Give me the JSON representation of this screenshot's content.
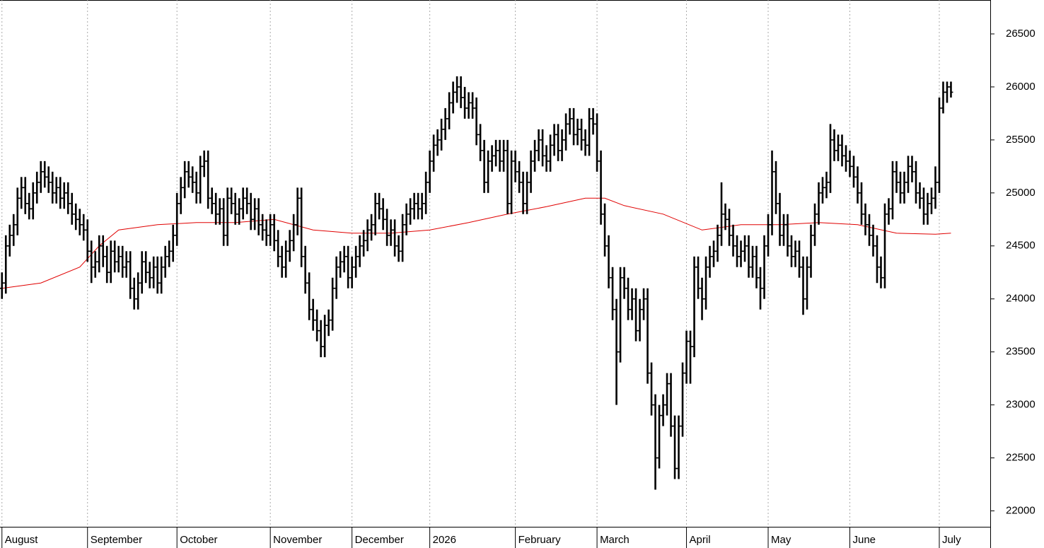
{
  "chart_data": {
    "type": "ohlc",
    "color": "#000000",
    "open": [
      24100,
      24150,
      24500,
      24600,
      24700,
      24950,
      25050,
      24900,
      24850,
      25000,
      25100,
      25200,
      25150,
      25100,
      25000,
      25050,
      24950,
      25000,
      24900,
      24800,
      24750,
      24700,
      24650,
      24450,
      24300,
      24350,
      24500,
      24400,
      24250,
      24450,
      24350,
      24400,
      24300,
      24350,
      24100,
      24000,
      24150,
      24350,
      24250,
      24200,
      24300,
      24150,
      24300,
      24400,
      24450,
      24600,
      24900,
      25050,
      25200,
      25150,
      25100,
      25000,
      25250,
      25300,
      24950,
      24900,
      24800,
      24850,
      24600,
      24950,
      24900,
      24800,
      24850,
      24950,
      24900,
      24750,
      24850,
      24700,
      24650,
      24600,
      24700,
      24550,
      24400,
      24300,
      24450,
      24550,
      24700,
      24950,
      24400,
      24150,
      23900,
      23800,
      23700,
      23550,
      23750,
      23800,
      24100,
      24300,
      24350,
      24400,
      24200,
      24300,
      24400,
      24500,
      24550,
      24650,
      24700,
      24900,
      24850,
      24750,
      24600,
      24650,
      24500,
      24450,
      24700,
      24800,
      24850,
      24900,
      24850,
      24900,
      25100,
      25300,
      25450,
      25500,
      25600,
      25700,
      25850,
      25950,
      26000,
      25900,
      25800,
      25850,
      25800,
      25550,
      25400,
      25100,
      25300,
      25350,
      25400,
      25300,
      25400,
      24900,
      25300,
      25200,
      25100,
      24900,
      25100,
      25300,
      25400,
      25500,
      25350,
      25300,
      25450,
      25550,
      25400,
      25500,
      25650,
      25700,
      25550,
      25600,
      25500,
      25450,
      25700,
      25650,
      25300,
      24800,
      24500,
      24200,
      23900,
      23500,
      24200,
      24100,
      23900,
      24000,
      23700,
      23900,
      24000,
      23300,
      23000,
      22500,
      22900,
      23000,
      23200,
      22800,
      22400,
      22800,
      23300,
      23600,
      23550,
      24300,
      24100,
      24000,
      24300,
      24400,
      24450,
      24600,
      24800,
      24750,
      24600,
      24500,
      24400,
      24450,
      24500,
      24300,
      24400,
      24200,
      24100,
      24500,
      24700,
      25200,
      24900,
      24600,
      24700,
      24500,
      24400,
      24450,
      24300,
      24000,
      24300,
      24600,
      24800,
      25000,
      25050,
      25100,
      25500,
      25400,
      25450,
      25350,
      25300,
      25250,
      25150,
      25000,
      24800,
      24700,
      24600,
      24500,
      24300,
      24200,
      24800,
      24850,
      25200,
      25100,
      25000,
      25100,
      25250,
      25200,
      25000,
      24950,
      24800,
      24900,
      24950,
      25100,
      25800,
      25950,
      26000
    ],
    "high": [
      24250,
      24600,
      24700,
      24800,
      25050,
      25150,
      25150,
      25000,
      25100,
      25200,
      25300,
      25300,
      25250,
      25200,
      25150,
      25150,
      25100,
      25100,
      25000,
      24900,
      24850,
      24800,
      24750,
      24550,
      24450,
      24600,
      24600,
      24500,
      24550,
      24550,
      24500,
      24500,
      24450,
      24450,
      24200,
      24250,
      24450,
      24450,
      24350,
      24400,
      24400,
      24400,
      24500,
      24550,
      24700,
      25000,
      25150,
      25300,
      25300,
      25250,
      25200,
      25350,
      25400,
      25400,
      25050,
      25000,
      24950,
      24950,
      25050,
      25050,
      25000,
      24950,
      25050,
      25050,
      25000,
      24950,
      24950,
      24800,
      24750,
      24800,
      24800,
      24650,
      24500,
      24550,
      24650,
      24800,
      25050,
      25050,
      24500,
      24250,
      24000,
      23900,
      23800,
      23850,
      23900,
      24200,
      24400,
      24450,
      24500,
      24500,
      24400,
      24500,
      24600,
      24650,
      24750,
      24800,
      25000,
      25000,
      24950,
      24850,
      24750,
      24750,
      24600,
      24800,
      24900,
      24950,
      25000,
      25000,
      25000,
      25200,
      25400,
      25550,
      25600,
      25700,
      25800,
      25950,
      26050,
      26100,
      26100,
      26000,
      25950,
      25950,
      25900,
      25650,
      25500,
      25400,
      25450,
      25500,
      25500,
      25500,
      25500,
      25400,
      25400,
      25300,
      25200,
      25200,
      25400,
      25500,
      25600,
      25600,
      25450,
      25550,
      25650,
      25650,
      25600,
      25750,
      25800,
      25800,
      25700,
      25700,
      25600,
      25800,
      25800,
      25750,
      25400,
      24900,
      24600,
      24300,
      24000,
      24300,
      24300,
      24200,
      24100,
      24100,
      24000,
      24100,
      24100,
      23400,
      23100,
      23000,
      23100,
      23300,
      23300,
      22900,
      22900,
      23400,
      23700,
      23700,
      24400,
      24400,
      24200,
      24400,
      24500,
      24550,
      24700,
      25100,
      24900,
      24850,
      24700,
      24600,
      24550,
      24600,
      24600,
      24500,
      24500,
      24300,
      24600,
      24800,
      25400,
      25300,
      25000,
      24800,
      24800,
      24600,
      24550,
      24550,
      24400,
      24400,
      24700,
      24900,
      25100,
      25150,
      25200,
      25650,
      25600,
      25550,
      25550,
      25450,
      25400,
      25350,
      25250,
      25100,
      24900,
      24800,
      24700,
      24600,
      24400,
      24900,
      24950,
      25300,
      25300,
      25200,
      25200,
      25350,
      25350,
      25300,
      25100,
      25050,
      25000,
      25050,
      25250,
      25900,
      26050,
      26050,
      26050
    ],
    "low": [
      24000,
      24050,
      24400,
      24500,
      24600,
      24850,
      24800,
      24750,
      24750,
      24900,
      25000,
      25050,
      25000,
      24900,
      24900,
      24850,
      24850,
      24800,
      24700,
      24650,
      24600,
      24550,
      24350,
      24150,
      24200,
      24250,
      24300,
      24150,
      24150,
      24250,
      24250,
      24200,
      24200,
      24000,
      23900,
      23900,
      24050,
      24150,
      24100,
      24100,
      24050,
      24050,
      24200,
      24300,
      24350,
      24500,
      24800,
      24950,
      25050,
      25000,
      24900,
      24900,
      25150,
      24850,
      24800,
      24700,
      24700,
      24500,
      24500,
      24800,
      24700,
      24700,
      24750,
      24800,
      24650,
      24650,
      24600,
      24550,
      24500,
      24500,
      24450,
      24300,
      24200,
      24200,
      24350,
      24450,
      24600,
      24300,
      24050,
      23800,
      23700,
      23600,
      23450,
      23450,
      23650,
      23700,
      24000,
      24200,
      24250,
      24100,
      24100,
      24200,
      24300,
      24400,
      24450,
      24550,
      24600,
      24750,
      24650,
      24500,
      24500,
      24400,
      24350,
      24350,
      24600,
      24700,
      24750,
      24750,
      24750,
      24800,
      25000,
      25200,
      25350,
      25400,
      25500,
      25600,
      25750,
      25850,
      25800,
      25700,
      25700,
      25700,
      25450,
      25300,
      25000,
      25000,
      25200,
      25250,
      25200,
      25200,
      24800,
      24800,
      25100,
      25000,
      24800,
      24800,
      25000,
      25200,
      25300,
      25250,
      25200,
      25200,
      25350,
      25300,
      25300,
      25400,
      25550,
      25450,
      25450,
      25400,
      25350,
      25350,
      25550,
      25200,
      24700,
      24400,
      24100,
      23800,
      23000,
      23400,
      24000,
      23800,
      23800,
      23600,
      23600,
      23800,
      23200,
      22900,
      22200,
      22400,
      22800,
      22900,
      22700,
      22300,
      22300,
      22700,
      23200,
      23200,
      23450,
      24000,
      23800,
      23900,
      24200,
      24300,
      24350,
      24500,
      24650,
      24500,
      24400,
      24300,
      24300,
      24350,
      24200,
      24200,
      24100,
      23900,
      24000,
      24400,
      24600,
      24800,
      24500,
      24500,
      24400,
      24300,
      24300,
      24200,
      23850,
      23900,
      24200,
      24500,
      24700,
      24900,
      24950,
      25000,
      25300,
      25300,
      25250,
      25200,
      25150,
      25050,
      24900,
      24700,
      24600,
      24500,
      24400,
      24150,
      24100,
      24100,
      24700,
      24750,
      25000,
      24900,
      24900,
      25000,
      25100,
      24900,
      24850,
      24700,
      24700,
      24800,
      24850,
      25000,
      25750,
      25850,
      25900
    ],
    "close": [
      24150,
      24500,
      24600,
      24700,
      24950,
      25050,
      24900,
      24850,
      25000,
      25100,
      25200,
      25150,
      25100,
      25000,
      25050,
      24950,
      25000,
      24900,
      24800,
      24750,
      24700,
      24650,
      24450,
      24300,
      24350,
      24500,
      24400,
      24250,
      24450,
      24350,
      24400,
      24300,
      24350,
      24100,
      24000,
      24150,
      24350,
      24250,
      24200,
      24300,
      24150,
      24300,
      24400,
      24450,
      24600,
      24900,
      25050,
      25200,
      25150,
      25100,
      25000,
      25250,
      25300,
      24950,
      24900,
      24800,
      24850,
      24600,
      24950,
      24900,
      24800,
      24850,
      24950,
      24900,
      24750,
      24850,
      24700,
      24650,
      24600,
      24700,
      24550,
      24400,
      24300,
      24450,
      24550,
      24700,
      24950,
      24400,
      24150,
      23900,
      23800,
      23700,
      23550,
      23750,
      23800,
      24100,
      24300,
      24350,
      24400,
      24200,
      24300,
      24400,
      24500,
      24550,
      24650,
      24700,
      24900,
      24850,
      24750,
      24600,
      24650,
      24500,
      24450,
      24700,
      24800,
      24850,
      24900,
      24850,
      24900,
      25100,
      25300,
      25450,
      25500,
      25600,
      25700,
      25850,
      25950,
      26000,
      25900,
      25800,
      25850,
      25800,
      25550,
      25400,
      25100,
      25300,
      25350,
      25400,
      25300,
      25400,
      24900,
      25300,
      25200,
      25100,
      24900,
      25100,
      25300,
      25400,
      25500,
      25350,
      25300,
      25450,
      25550,
      25400,
      25500,
      25650,
      25700,
      25550,
      25600,
      25500,
      25450,
      25700,
      25650,
      25300,
      24800,
      24500,
      24200,
      23900,
      23500,
      24200,
      24100,
      23900,
      24000,
      23700,
      23900,
      24000,
      23300,
      23000,
      22500,
      22900,
      23000,
      23200,
      22800,
      22400,
      22800,
      23300,
      23600,
      23550,
      24300,
      24100,
      24000,
      24300,
      24400,
      24450,
      24600,
      24800,
      24750,
      24600,
      24500,
      24400,
      24450,
      24500,
      24300,
      24400,
      24200,
      24100,
      24500,
      24700,
      25200,
      24900,
      24600,
      24700,
      24500,
      24400,
      24450,
      24300,
      24000,
      24300,
      24600,
      24800,
      25000,
      25050,
      25100,
      25500,
      25400,
      25450,
      25350,
      25300,
      25250,
      25150,
      25000,
      24800,
      24700,
      24600,
      24500,
      24300,
      24200,
      24800,
      24850,
      25200,
      25100,
      25000,
      25100,
      25250,
      25200,
      25000,
      24950,
      24800,
      24900,
      24950,
      25100,
      25800,
      25950,
      26000,
      25950
    ],
    "ma": {
      "color": "#e00000",
      "x": [
        0,
        10,
        20,
        25,
        30,
        40,
        50,
        60,
        70,
        80,
        90,
        100,
        110,
        120,
        130,
        140,
        150,
        155,
        160,
        170,
        180,
        190,
        200,
        210,
        220,
        230,
        240,
        244
      ],
      "values": [
        24100,
        24150,
        24300,
        24500,
        24650,
        24700,
        24720,
        24720,
        24750,
        24650,
        24620,
        24620,
        24650,
        24720,
        24800,
        24870,
        24950,
        24950,
        24880,
        24800,
        24650,
        24700,
        24700,
        24720,
        24700,
        24620,
        24610,
        24620
      ]
    },
    "xlim": [
      -0.5,
      254.1
    ],
    "xticks": [
      {
        "value": 0,
        "label": "August"
      },
      {
        "value": 22,
        "label": "September"
      },
      {
        "value": 45,
        "label": "October"
      },
      {
        "value": 69,
        "label": "November"
      },
      {
        "value": 90,
        "label": "December"
      },
      {
        "value": 110,
        "label": "2026"
      },
      {
        "value": 132,
        "label": "February"
      },
      {
        "value": 153,
        "label": "March"
      },
      {
        "value": 176,
        "label": "April"
      },
      {
        "value": 197,
        "label": "May"
      },
      {
        "value": 218,
        "label": "June"
      },
      {
        "value": 241,
        "label": "July"
      }
    ],
    "ylim": [
      21850,
      26820
    ],
    "yticks": [
      22000,
      22500,
      23000,
      23500,
      24000,
      24500,
      25000,
      25500,
      26000,
      26500
    ],
    "grid": true
  }
}
